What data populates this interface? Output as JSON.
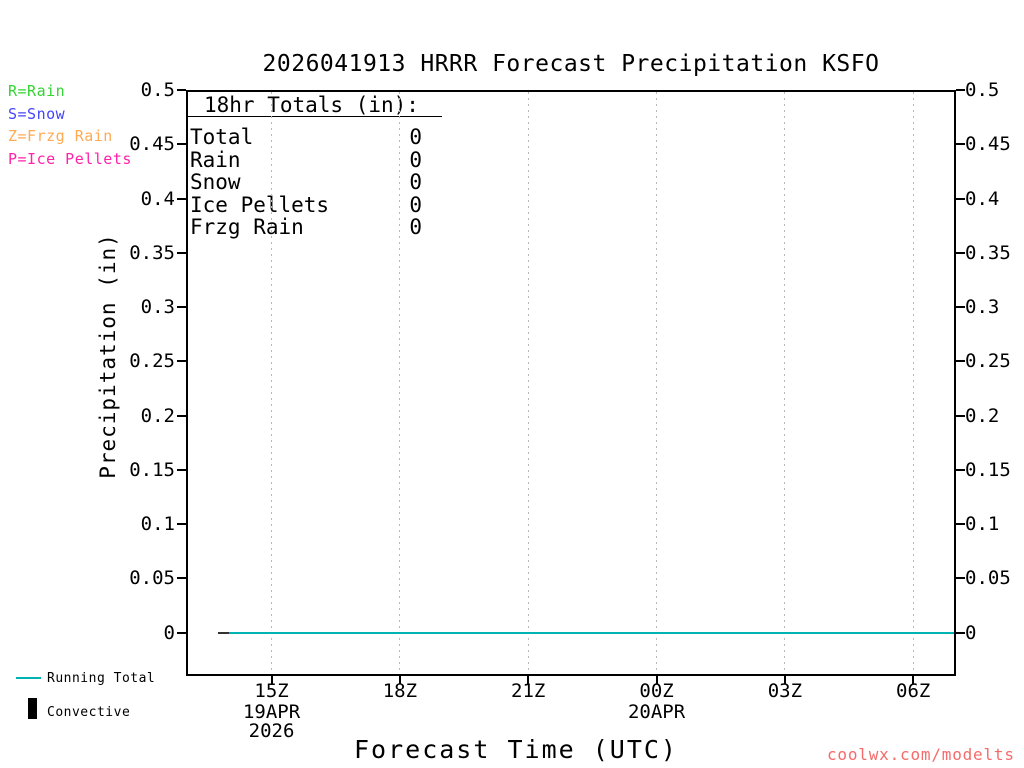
{
  "title": "2026041913 HRRR Forecast Precipitation KSFO",
  "precip_type_legend": [
    {
      "code": "R",
      "label": "R=Rain",
      "color": "#33d433"
    },
    {
      "code": "S",
      "label": "S=Snow",
      "color": "#4444ff"
    },
    {
      "code": "Z",
      "label": "Z=Frzg Rain",
      "color": "#ffaa55"
    },
    {
      "code": "P",
      "label": "P=Ice Pellets",
      "color": "#ff22aa"
    }
  ],
  "totals_panel": {
    "heading": "18hr Totals (in):",
    "rows": [
      {
        "label": "Total",
        "value": "0"
      },
      {
        "label": "Rain",
        "value": "0"
      },
      {
        "label": "Snow",
        "value": "0"
      },
      {
        "label": "Ice Pellets",
        "value": "0"
      },
      {
        "label": "Frzg Rain",
        "value": "0"
      }
    ]
  },
  "series_legend": [
    {
      "label": "Running Total",
      "swatch": "line",
      "color": "#00b2b2"
    },
    {
      "label": "Convective",
      "swatch": "bar",
      "color": "#000000"
    }
  ],
  "watermark": {
    "text": "coolwx.com/modelts",
    "color": "#f56b6b"
  },
  "chart_data": {
    "type": "line",
    "title": "2026041913 HRRR Forecast Precipitation KSFO",
    "xlabel": "Forecast Time (UTC)",
    "ylabel": "Precipitation (in)",
    "ylim": [
      -0.04,
      0.5
    ],
    "y_ticks": [
      0,
      0.05,
      0.1,
      0.15,
      0.2,
      0.25,
      0.3,
      0.35,
      0.4,
      0.45,
      0.5
    ],
    "grid": {
      "vertical": "dotted",
      "horizontal": "none"
    },
    "legend_position": "bottom-left",
    "x_axis": {
      "origin": "13Z 19APR 2026",
      "span_hours": 18
    },
    "x_ticks": [
      {
        "label": "15Z",
        "hour_offset": 2,
        "date": "19APR",
        "year": "2026"
      },
      {
        "label": "18Z",
        "hour_offset": 5
      },
      {
        "label": "21Z",
        "hour_offset": 8
      },
      {
        "label": "00Z",
        "hour_offset": 11,
        "date": "20APR"
      },
      {
        "label": "03Z",
        "hour_offset": 14
      },
      {
        "label": "06Z",
        "hour_offset": 17
      }
    ],
    "x_hours": [
      "14Z",
      "15Z",
      "16Z",
      "17Z",
      "18Z",
      "19Z",
      "20Z",
      "21Z",
      "22Z",
      "23Z",
      "00Z",
      "01Z",
      "02Z",
      "03Z",
      "04Z",
      "05Z",
      "06Z",
      "07Z"
    ],
    "series": [
      {
        "name": "Convective",
        "color": "#333333",
        "start_hour": 0.75,
        "values": [
          0,
          0,
          0,
          0,
          0,
          0,
          0,
          0,
          0,
          0,
          0,
          0,
          0,
          0,
          0,
          0,
          0,
          0
        ]
      },
      {
        "name": "Running Total",
        "color": "#00b2b2",
        "start_hour": 1,
        "values": [
          0,
          0,
          0,
          0,
          0,
          0,
          0,
          0,
          0,
          0,
          0,
          0,
          0,
          0,
          0,
          0,
          0,
          0
        ]
      }
    ]
  }
}
